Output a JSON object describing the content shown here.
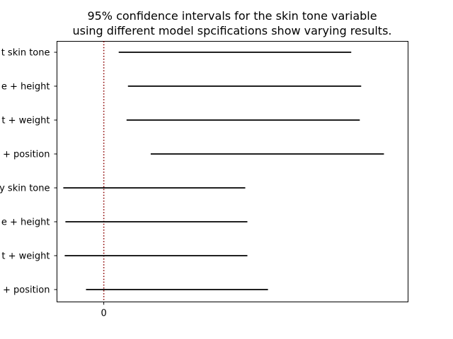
{
  "chart_data": {
    "type": "interval",
    "title": [
      "95% confidence intervals for the skin tone variable",
      "using different model spcifications show varying results."
    ],
    "xlabel": "",
    "ylabel": "",
    "x_ticks": [
      0
    ],
    "x_tick_labels": [
      "0"
    ],
    "xlim": [
      -0.08,
      0.52
    ],
    "reference_line": {
      "x": 0,
      "style": "dotted",
      "color": "#8b0000"
    },
    "interval_color": "#000000",
    "grid": false,
    "categories": [
      "t skin tone",
      "e + height",
      "t + weight",
      "+ position",
      "y skin tone",
      "e + height",
      "t + weight",
      "+ position"
    ],
    "intervals": [
      {
        "lower": 0.0255,
        "upper": 0.4229
      },
      {
        "lower": 0.0413,
        "upper": 0.4399
      },
      {
        "lower": 0.0389,
        "upper": 0.4375
      },
      {
        "lower": 0.0802,
        "upper": 0.4788
      },
      {
        "lower": -0.0692,
        "upper": 0.2418
      },
      {
        "lower": -0.0656,
        "upper": 0.2454
      },
      {
        "lower": -0.0668,
        "upper": 0.2454
      },
      {
        "lower": -0.0304,
        "upper": 0.2806
      }
    ]
  }
}
